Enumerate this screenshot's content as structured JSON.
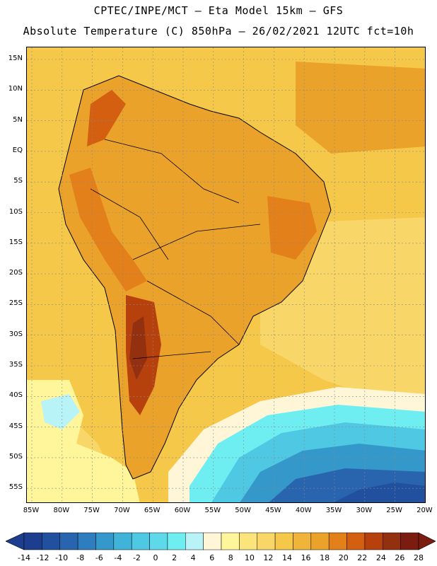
{
  "header": {
    "line1": "CPTEC/INPE/MCT –  Eta Model 15km – GFS",
    "line2": "Absolute Temperature (C) 850hPa – 26/02/2021 12UTC fct=10h"
  },
  "axes": {
    "lat_labels": [
      "15N",
      "10N",
      "5N",
      "EQ",
      "5S",
      "10S",
      "15S",
      "20S",
      "25S",
      "30S",
      "35S",
      "40S",
      "45S",
      "50S",
      "55S"
    ],
    "lon_labels": [
      "85W",
      "80W",
      "75W",
      "70W",
      "65W",
      "60W",
      "55W",
      "50W",
      "45W",
      "40W",
      "35W",
      "30W",
      "25W",
      "20W"
    ]
  },
  "colorbar": {
    "ticks": [
      "-14",
      "-12",
      "-10",
      "-8",
      "-6",
      "-4",
      "-2",
      "0",
      "2",
      "4",
      "6",
      "8",
      "10",
      "12",
      "14",
      "16",
      "18",
      "20",
      "22",
      "24",
      "26",
      "28"
    ],
    "colors": [
      "#1d3e8e",
      "#21509e",
      "#2865ae",
      "#2e7dbf",
      "#3598cb",
      "#40b3d9",
      "#4ec8e3",
      "#5dd9ea",
      "#6feef2",
      "#b8f3f7",
      "#fff6d8",
      "#fff59a",
      "#fbe57a",
      "#f8d668",
      "#f6c84a",
      "#f0b43a",
      "#eba22a",
      "#e3801a",
      "#d45f10",
      "#b7410c",
      "#933010",
      "#7a1d10"
    ]
  },
  "map": {
    "background": "#f6c84a"
  }
}
